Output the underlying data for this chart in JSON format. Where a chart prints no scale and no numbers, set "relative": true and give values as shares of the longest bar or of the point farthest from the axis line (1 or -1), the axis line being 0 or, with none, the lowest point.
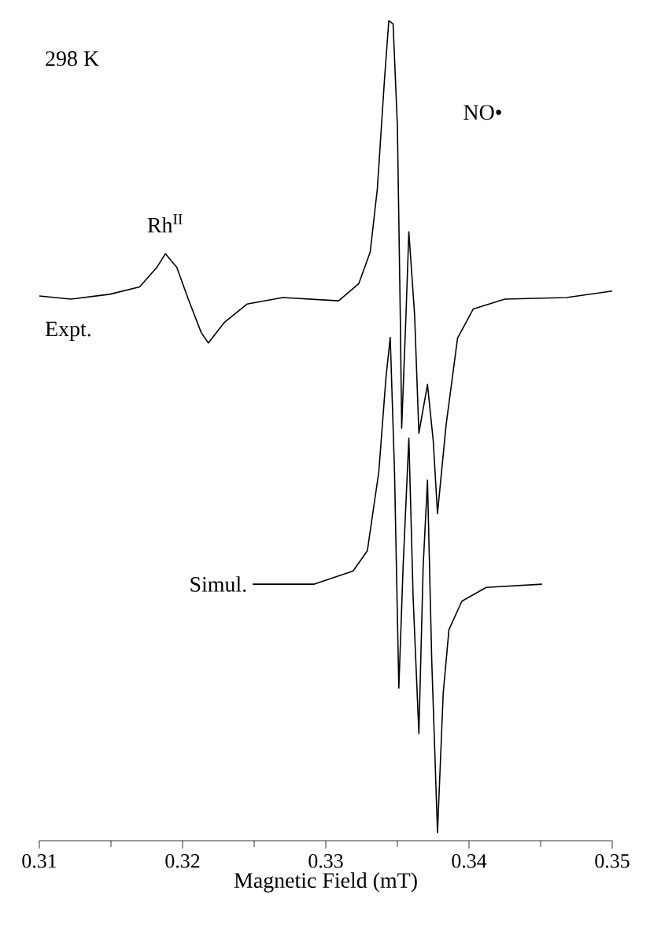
{
  "chart_data": {
    "type": "line",
    "relative": true,
    "xlabel": "Magnetic Field (mT)",
    "xlim": [
      0.31,
      0.35
    ],
    "xticks": [
      0.31,
      0.32,
      0.33,
      0.34,
      0.35
    ],
    "marker": "none",
    "line_style": "solid",
    "annotations": [
      "298 K",
      {
        "text": "Rh$^{II}$",
        "x": 0.3188,
        "y": 0.713
      },
      "NO•"
    ],
    "series": [
      {
        "name": "Expt.",
        "color": "#000000",
        "x": [
          0.31,
          0.3122,
          0.3149,
          0.317,
          0.3182,
          0.3188,
          0.3196,
          0.3204,
          0.3213,
          0.3218,
          0.3229,
          0.3245,
          0.327,
          0.3309,
          0.3323,
          0.3331,
          0.3336,
          0.3341,
          0.3344,
          0.3347,
          0.335,
          0.3352,
          0.3353,
          0.3356,
          0.3358,
          0.3362,
          0.3365,
          0.3371,
          0.3375,
          0.3378,
          0.3384,
          0.3392,
          0.3403,
          0.3425,
          0.3468,
          0.35
        ],
        "values": [
          0.661,
          0.657,
          0.663,
          0.672,
          0.696,
          0.713,
          0.696,
          0.657,
          0.616,
          0.603,
          0.628,
          0.651,
          0.659,
          0.655,
          0.676,
          0.715,
          0.793,
          0.928,
          1.0,
          0.996,
          0.87,
          0.638,
          0.498,
          0.638,
          0.74,
          0.638,
          0.492,
          0.552,
          0.483,
          0.393,
          0.502,
          0.609,
          0.645,
          0.657,
          0.659,
          0.667
        ]
      },
      {
        "name": "Simul.",
        "color": "#000000",
        "x": [
          0.3249,
          0.3292,
          0.3319,
          0.3329,
          0.3337,
          0.3342,
          0.3345,
          0.3348,
          0.3351,
          0.3354,
          0.3358,
          0.3361,
          0.3365,
          0.3368,
          0.3371,
          0.3374,
          0.3378,
          0.3382,
          0.3386,
          0.3395,
          0.3412,
          0.3451
        ],
        "values": [
          0.306,
          0.306,
          0.322,
          0.347,
          0.444,
          0.56,
          0.61,
          0.444,
          0.178,
          0.328,
          0.486,
          0.289,
          0.122,
          0.328,
          0.434,
          0.211,
          0.0,
          0.172,
          0.25,
          0.285,
          0.302,
          0.306
        ]
      }
    ]
  }
}
